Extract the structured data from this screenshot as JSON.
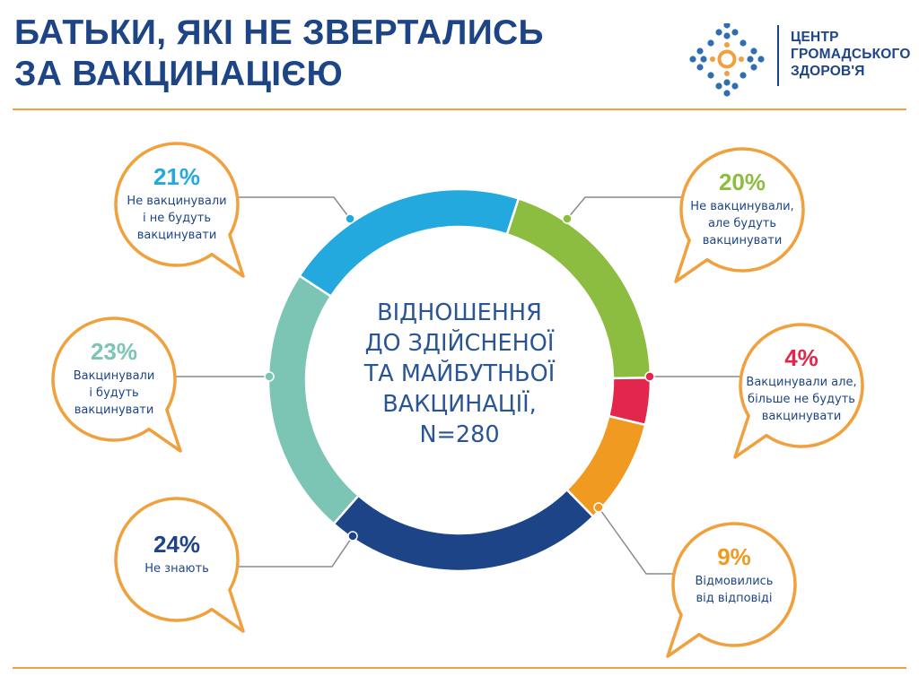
{
  "header": {
    "title_lines": [
      "БАТЬКИ, ЯКІ НЕ ЗВЕРТАЛИСЬ",
      "ЗА ВАКЦИНАЦІЄЮ"
    ]
  },
  "logo": {
    "name_lines": [
      "ЦЕНТР",
      "ГРОМАДСЬКОГО",
      "ЗДОРОВ'Я"
    ],
    "colors": {
      "dots": "#2f6fb0",
      "ring": "#f0a03c"
    }
  },
  "colors": {
    "accent": "#f0a03c",
    "title": "#1d4586",
    "bubble_text": "#1d4586",
    "connector": "#8a8a8a"
  },
  "chart_data": {
    "type": "pie",
    "donut": true,
    "center_text": [
      "ВІДНОШЕННЯ",
      "ДО ЗДІЙСНЕНОЇ",
      "ТА МАЙБУТНЬОЇ",
      "ВАКЦИНАЦІЇ,",
      "N=280"
    ],
    "slices": [
      {
        "label_lines": [
          "Не вакцинували,",
          "але будуть",
          "вакцинувати"
        ],
        "value": 20,
        "value_label": "20%",
        "color": "#8cbd41"
      },
      {
        "label_lines": [
          "Вакцинували але,",
          "більше не будуть",
          "вакцинувати"
        ],
        "value": 4,
        "value_label": "4%",
        "color": "#e3274c"
      },
      {
        "label_lines": [
          "Відмовились",
          "від відповіді"
        ],
        "value": 9,
        "value_label": "9%",
        "color": "#f09a22"
      },
      {
        "label_lines": [
          "Не знають"
        ],
        "value": 24,
        "value_label": "24%",
        "color": "#1e4488"
      },
      {
        "label_lines": [
          "Вакцинували",
          "і будуть",
          "вакцинувати"
        ],
        "value": 23,
        "value_label": "23%",
        "color": "#7cc4b4"
      },
      {
        "label_lines": [
          "Не вакцинували",
          "і не будуть",
          "вакцинувати"
        ],
        "value": 21,
        "value_label": "21%",
        "color": "#24a9df"
      }
    ]
  }
}
